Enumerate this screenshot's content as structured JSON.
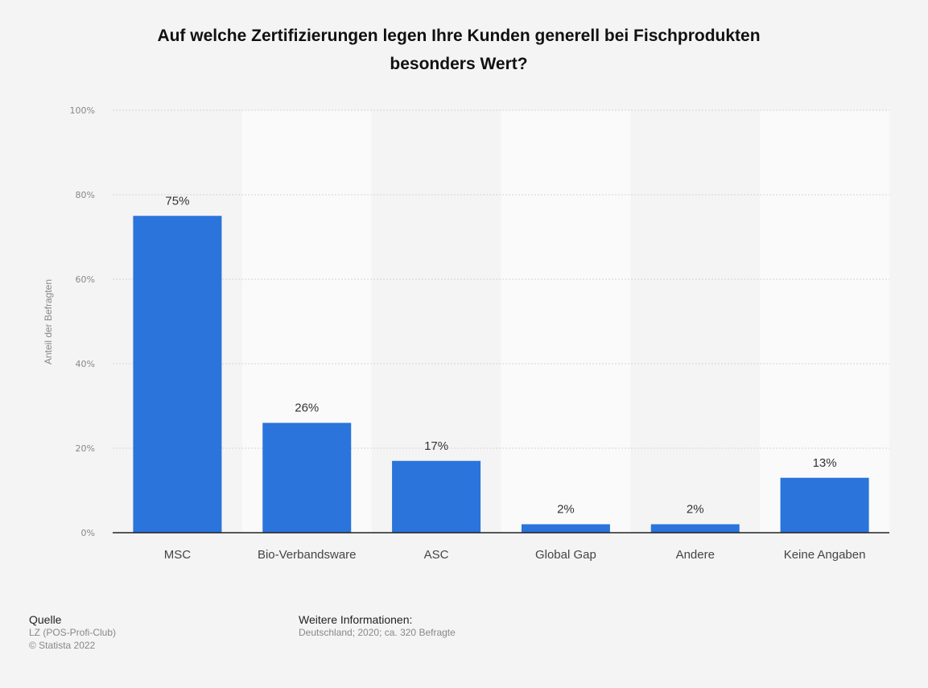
{
  "chart_data": {
    "type": "bar",
    "title_lines": [
      "Auf welche Zertifizierungen legen Ihre Kunden generell bei Fischprodukten",
      "besonders Wert?"
    ],
    "ylabel": "Anteil der Befragten",
    "xlabel": "",
    "ylim": [
      0,
      100
    ],
    "yticks": [
      0,
      20,
      40,
      60,
      80,
      100
    ],
    "ytick_labels": [
      "0%",
      "20%",
      "40%",
      "60%",
      "80%",
      "100%"
    ],
    "categories": [
      "MSC",
      "Bio-Verbandsware",
      "ASC",
      "Global Gap",
      "Andere",
      "Keine Angaben"
    ],
    "values": [
      75,
      26,
      17,
      2,
      2,
      13
    ],
    "value_labels": [
      "75%",
      "26%",
      "17%",
      "2%",
      "2%",
      "13%"
    ],
    "bar_color": "#2a74db",
    "grid": true,
    "legend": "none"
  },
  "footer": {
    "source_heading": "Quelle",
    "source_line1": "LZ (POS-Profi-Club)",
    "source_line2": "© Statista 2022",
    "info_heading": "Weitere Informationen:",
    "info_text": "Deutschland; 2020; ca. 320 Befragte"
  }
}
